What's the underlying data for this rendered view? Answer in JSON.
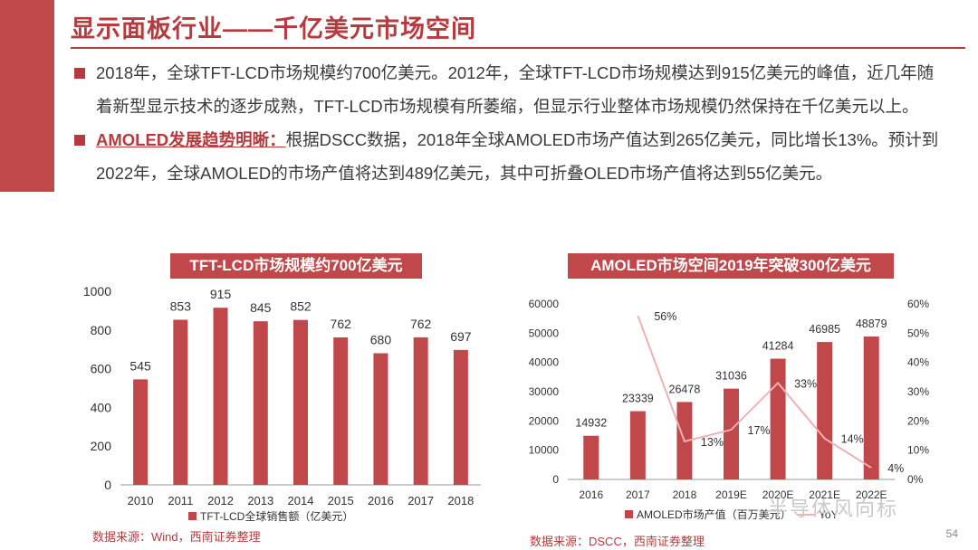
{
  "slide": {
    "title": "显示面板行业——千亿美元市场空间",
    "page_number": "54",
    "watermark": "半导体风向标"
  },
  "bullets": [
    {
      "highlight": "",
      "text": "2018年，全球TFT-LCD市场规模约700亿美元。2012年，全球TFT-LCD市场规模达到915亿美元的峰值，近几年随着新型显示技术的逐步成熟，TFT-LCD市场规模有所萎缩，但显示行业整体市场规模仍然保持在千亿美元以上。"
    },
    {
      "highlight": "AMOLED发展趋势明晰：",
      "text": "根据DSCC数据，2018年全球AMOLED市场产值达到265亿美元，同比增长13%。预计到2022年，全球AMOLED的市场产值将达到489亿美元，其中可折叠OLED市场产值将达到55亿美元。"
    }
  ],
  "chart_left": {
    "banner": "TFT-LCD市场规模约700亿美元",
    "source": "数据来源：Wind，西南证券整理"
  },
  "chart_right": {
    "banner": "AMOLED市场空间2019年突破300亿美元",
    "source": "数据来源：DSCC，西南证券整理"
  },
  "chart_data": [
    {
      "type": "bar",
      "title": "TFT-LCD市场规模约700亿美元",
      "categories": [
        "2010",
        "2011",
        "2012",
        "2013",
        "2014",
        "2015",
        "2016",
        "2017",
        "2018"
      ],
      "values": [
        545,
        853,
        915,
        845,
        852,
        762,
        680,
        762,
        697
      ],
      "series_name": "TFT-LCD全球销售额（亿美元）",
      "ylim": [
        0,
        1000
      ],
      "yticks": [
        0,
        200,
        400,
        600,
        800,
        1000
      ],
      "color": "#c0474a"
    },
    {
      "type": "bar+line",
      "title": "AMOLED市场空间2019年突破300亿美元",
      "categories": [
        "2016",
        "2017",
        "2018",
        "2019E",
        "2020E",
        "2021E",
        "2022E"
      ],
      "bar_series": {
        "name": "AMOLED市场产值（百万美元）",
        "values": [
          14932,
          23339,
          26478,
          31036,
          41284,
          46985,
          48879
        ]
      },
      "line_series": {
        "name": "YoY",
        "values": [
          null,
          56,
          13,
          17,
          33,
          14,
          4
        ],
        "labels": [
          "",
          "56%",
          "13%",
          "17%",
          "33%",
          "14%",
          "4%"
        ]
      },
      "ylim": [
        0,
        60000
      ],
      "yticks": [
        0,
        10000,
        20000,
        30000,
        40000,
        50000,
        60000
      ],
      "y2lim": [
        0,
        60
      ],
      "y2ticks": [
        "0%",
        "10%",
        "20%",
        "30%",
        "40%",
        "50%",
        "60%"
      ],
      "bar_color": "#c0474a",
      "line_color": "#f0b0b4"
    }
  ]
}
